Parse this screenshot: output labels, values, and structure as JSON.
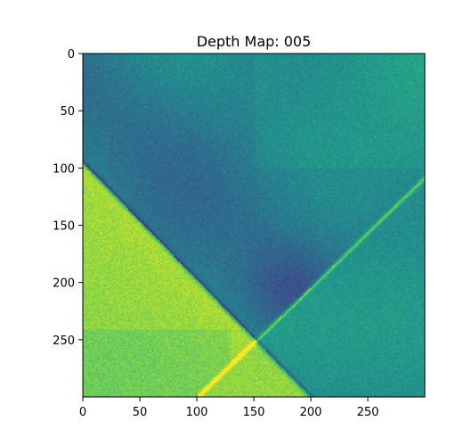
{
  "chart_data": {
    "type": "heatmap",
    "title": "Depth Map: 005",
    "xlabel": "",
    "ylabel": "",
    "image_shape": [
      300,
      300
    ],
    "xlim": [
      0,
      300
    ],
    "ylim": [
      300,
      0
    ],
    "x_ticks": [
      0,
      50,
      100,
      150,
      200,
      250
    ],
    "y_ticks": [
      0,
      50,
      100,
      150,
      200,
      250
    ],
    "x_tick_labels": [
      "0",
      "50",
      "100",
      "150",
      "200",
      "250"
    ],
    "y_tick_labels": [
      "0",
      "50",
      "100",
      "150",
      "200",
      "250"
    ],
    "colormap": "viridis",
    "colorbar": false,
    "grid": false,
    "description_of_pattern": {
      "bright_region": "lower-left triangle below the descending diagonal line",
      "dark_band": "descending band from upper-left toward center-right, darkest near (180, 200)",
      "lines": [
        {
          "from": [
            0,
            95
          ],
          "to": [
            200,
            300
          ],
          "kind": "dark seam"
        },
        {
          "from": [
            100,
            300
          ],
          "to": [
            300,
            108
          ],
          "kind": "bright seam"
        }
      ]
    }
  }
}
